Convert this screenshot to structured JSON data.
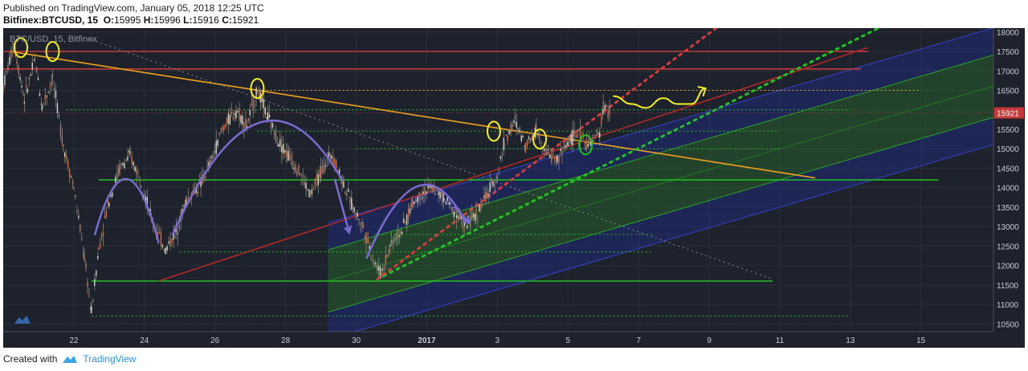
{
  "header": {
    "published": "Published on TradingView.com, January 05, 2018 12:25 UTC",
    "symbol": "Bitfinex:BTCUSD, 15",
    "o_label": "O:",
    "o": "15995",
    "h_label": "H:",
    "h": "15996",
    "l_label": "L:",
    "l": "15916",
    "c_label": "C:",
    "c": "15921"
  },
  "footer": {
    "created_with": "Created with",
    "brand": "TradingView"
  },
  "colors": {
    "background": "#1e222d",
    "price_badge": "#c73939",
    "up": "#d9d3c4",
    "green": "#22c222",
    "orange": "#f0a21e",
    "red": "#d23c3c",
    "blue_channel": "#1f2d8a",
    "green_channel": "#2b6a2b",
    "purple": "#7c6bd2",
    "yellow": "#f6f022"
  },
  "chart_data": {
    "type": "candlestick",
    "legend": "BTC/USD, 15, Bitfinex",
    "ylim": [
      10300,
      18100
    ],
    "x_ticks": [
      "22",
      "24",
      "26",
      "28",
      "30",
      "2017",
      "3",
      "5",
      "7",
      "9",
      "11",
      "13",
      "15"
    ],
    "y_ticks": [
      "18000",
      "17500",
      "17000",
      "16500",
      "16000",
      "15500",
      "15000",
      "14500",
      "14000",
      "13500",
      "13000",
      "12500",
      "12000",
      "11500",
      "11000",
      "10500"
    ],
    "last_price": "15921",
    "price_path": [
      {
        "x": 0.0,
        "y": 16600
      },
      {
        "x": 0.3,
        "y": 17700
      },
      {
        "x": 0.6,
        "y": 16300
      },
      {
        "x": 0.9,
        "y": 17300
      },
      {
        "x": 1.1,
        "y": 16100
      },
      {
        "x": 1.4,
        "y": 16800
      },
      {
        "x": 1.7,
        "y": 15100
      },
      {
        "x": 2.0,
        "y": 14000
      },
      {
        "x": 2.3,
        "y": 12200
      },
      {
        "x": 2.5,
        "y": 10800
      },
      {
        "x": 2.7,
        "y": 12400
      },
      {
        "x": 3.0,
        "y": 13700
      },
      {
        "x": 3.3,
        "y": 14500
      },
      {
        "x": 3.6,
        "y": 14800
      },
      {
        "x": 3.9,
        "y": 14200
      },
      {
        "x": 4.2,
        "y": 13200
      },
      {
        "x": 4.6,
        "y": 12400
      },
      {
        "x": 4.9,
        "y": 12900
      },
      {
        "x": 5.2,
        "y": 13700
      },
      {
        "x": 5.6,
        "y": 14100
      },
      {
        "x": 5.9,
        "y": 14700
      },
      {
        "x": 6.2,
        "y": 15500
      },
      {
        "x": 6.6,
        "y": 16000
      },
      {
        "x": 6.9,
        "y": 15600
      },
      {
        "x": 7.2,
        "y": 16500
      },
      {
        "x": 7.5,
        "y": 15800
      },
      {
        "x": 7.8,
        "y": 15200
      },
      {
        "x": 8.1,
        "y": 14800
      },
      {
        "x": 8.4,
        "y": 14400
      },
      {
        "x": 8.7,
        "y": 13800
      },
      {
        "x": 9.0,
        "y": 14400
      },
      {
        "x": 9.3,
        "y": 14900
      },
      {
        "x": 9.6,
        "y": 14200
      },
      {
        "x": 9.9,
        "y": 13500
      },
      {
        "x": 10.2,
        "y": 13000
      },
      {
        "x": 10.5,
        "y": 12100
      },
      {
        "x": 10.7,
        "y": 11800
      },
      {
        "x": 11.0,
        "y": 12600
      },
      {
        "x": 11.3,
        "y": 12900
      },
      {
        "x": 11.6,
        "y": 13600
      },
      {
        "x": 11.9,
        "y": 13900
      },
      {
        "x": 12.2,
        "y": 14000
      },
      {
        "x": 12.5,
        "y": 13700
      },
      {
        "x": 12.8,
        "y": 13400
      },
      {
        "x": 13.1,
        "y": 13000
      },
      {
        "x": 13.4,
        "y": 13300
      },
      {
        "x": 13.7,
        "y": 13800
      },
      {
        "x": 14.0,
        "y": 14300
      },
      {
        "x": 14.2,
        "y": 15200
      },
      {
        "x": 14.5,
        "y": 15700
      },
      {
        "x": 14.8,
        "y": 15100
      },
      {
        "x": 15.1,
        "y": 15500
      },
      {
        "x": 15.4,
        "y": 14900
      },
      {
        "x": 15.7,
        "y": 14700
      },
      {
        "x": 16.0,
        "y": 15200
      },
      {
        "x": 16.3,
        "y": 15400
      },
      {
        "x": 16.6,
        "y": 15100
      },
      {
        "x": 16.9,
        "y": 15400
      },
      {
        "x": 17.0,
        "y": 16100
      },
      {
        "x": 17.2,
        "y": 15921
      }
    ],
    "horizontal_lines": [
      {
        "y": 17500,
        "color": "#d23c3c",
        "style": "solid",
        "x1": 0,
        "x2": 24.5
      },
      {
        "y": 17050,
        "color": "#d23c3c",
        "style": "solid",
        "x1": 0,
        "x2": 24.3
      },
      {
        "y": 16500,
        "color": "#f0a21e",
        "style": "dotted",
        "x1": 7.0,
        "x2": 26.0
      },
      {
        "y": 14200,
        "color": "#22c222",
        "style": "solid",
        "x1": 2.7,
        "x2": 26.5
      },
      {
        "y": 11600,
        "color": "#22c222",
        "style": "solid",
        "x1": 2.5,
        "x2": 21.8
      },
      {
        "y": 16000,
        "color": "#22c222",
        "style": "dotted",
        "x1": 1.8,
        "x2": 24.0
      },
      {
        "y": 15450,
        "color": "#22c222",
        "style": "dotted",
        "x1": 7.2,
        "x2": 22.0
      },
      {
        "y": 15000,
        "color": "#22c222",
        "style": "dotted",
        "x1": 10.0,
        "x2": 22.0
      },
      {
        "y": 12800,
        "color": "#22c222",
        "style": "dotted",
        "x1": 10.5,
        "x2": 18.4
      },
      {
        "y": 12350,
        "color": "#22c222",
        "style": "dotted",
        "x1": 5.0,
        "x2": 18.4
      },
      {
        "y": 10700,
        "color": "#22c222",
        "style": "dotted",
        "x1": 2.5,
        "x2": 24.0
      }
    ],
    "trend_lines": [
      {
        "from": [
          0.2,
          17500
        ],
        "to": [
          23.0,
          14250
        ],
        "color": "#f0a21e",
        "style": "solid"
      },
      {
        "from": [
          2.5,
          17800
        ],
        "to": [
          21.8,
          11650
        ],
        "color": "#8a8a8a",
        "style": "dotted"
      },
      {
        "from": [
          4.4,
          11600
        ],
        "to": [
          24.5,
          17600
        ],
        "color": "#b02828",
        "style": "solid"
      },
      {
        "from": [
          10.6,
          11650
        ],
        "to": [
          24.8,
          18100
        ],
        "color": "#22c222",
        "style": "dotted"
      },
      {
        "from": [
          10.6,
          11650
        ],
        "to": [
          20.2,
          18100
        ],
        "color": "#d23c3c",
        "style": "dotted"
      }
    ],
    "channel": {
      "x1": 9.2,
      "x2": 28.4,
      "y_start": 11600,
      "y_end": 16700,
      "offsets": [
        -1500,
        -800,
        0,
        800,
        1500
      ],
      "colors": [
        "#1f2d8a",
        "#2b6a2b",
        "#2b6a2b",
        "#1f2d8a"
      ]
    },
    "arcs": [
      {
        "from": [
          2.6,
          12800
        ],
        "peak": [
          3.5,
          14350
        ],
        "to": [
          4.4,
          12600
        ]
      },
      {
        "from": [
          4.8,
          12800
        ],
        "peak": [
          7.3,
          15450
        ],
        "to": [
          9.6,
          14200
        ]
      },
      {
        "from": [
          10.3,
          12200
        ],
        "peak": [
          11.8,
          13900
        ],
        "to": [
          13.1,
          13100
        ]
      }
    ],
    "arrows": [
      {
        "from": [
          9.4,
          14200
        ],
        "to": [
          9.8,
          12850
        ]
      },
      {
        "from": [
          12.8,
          13500
        ],
        "to": [
          13.2,
          13100
        ]
      }
    ],
    "circles": [
      {
        "x": 0.5,
        "y": 17600,
        "color": "#f6f022"
      },
      {
        "x": 1.4,
        "y": 17500,
        "color": "#f6f022"
      },
      {
        "x": 7.2,
        "y": 16550,
        "color": "#f6f022"
      },
      {
        "x": 13.9,
        "y": 15450,
        "color": "#f6f022"
      },
      {
        "x": 15.2,
        "y": 15250,
        "color": "#f6f022"
      },
      {
        "x": 16.5,
        "y": 15100,
        "color": "#22c222"
      }
    ],
    "projection": [
      {
        "x": 17.3,
        "y": 16350
      },
      {
        "x": 17.8,
        "y": 16150
      },
      {
        "x": 18.2,
        "y": 16050
      },
      {
        "x": 18.7,
        "y": 16300
      },
      {
        "x": 19.1,
        "y": 16150
      },
      {
        "x": 19.5,
        "y": 16150
      },
      {
        "x": 19.9,
        "y": 16550
      }
    ]
  }
}
